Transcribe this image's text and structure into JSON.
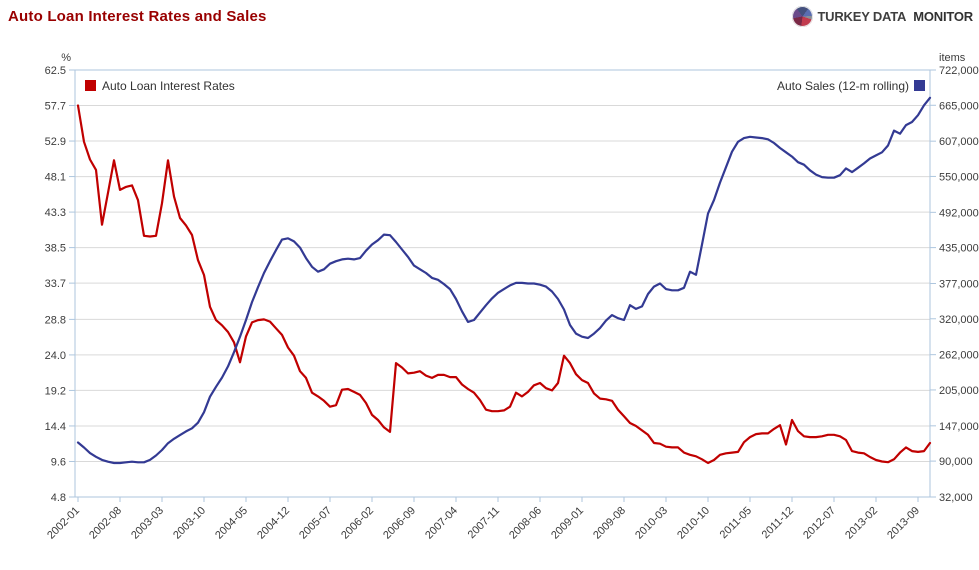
{
  "header": {
    "title": "Auto Loan Interest Rates and Sales",
    "brand": {
      "part1": "TURKEY DATA",
      "part2": "MONITOR"
    }
  },
  "chart_data": {
    "type": "line",
    "title": "Auto Loan Interest Rates and Sales",
    "grid": true,
    "left_axis": {
      "unit": "%",
      "min": 4.8,
      "max": 62.5,
      "ticks": [
        "62.5",
        "57.7",
        "52.9",
        "48.1",
        "43.3",
        "38.5",
        "33.7",
        "28.8",
        "24.0",
        "19.2",
        "14.4",
        "9.6",
        "4.8"
      ]
    },
    "right_axis": {
      "unit": "items",
      "min": 32000,
      "max": 722000,
      "ticks": [
        "722,000",
        "665,000",
        "607,000",
        "550,000",
        "492,000",
        "435,000",
        "377,000",
        "320,000",
        "262,000",
        "205,000",
        "147,000",
        "90,000",
        "32,000"
      ]
    },
    "x": {
      "start": "2002-01",
      "frequency": "monthly",
      "tick_labels": [
        "2002-01",
        "2002-08",
        "2003-03",
        "2003-10",
        "2004-05",
        "2004-12",
        "2005-07",
        "2006-02",
        "2006-09",
        "2007-04",
        "2007-11",
        "2008-06",
        "2009-01",
        "2009-08",
        "2010-03",
        "2010-10",
        "2011-05",
        "2011-12",
        "2012-07",
        "2013-02",
        "2013-09"
      ],
      "tick_month_indices": [
        0,
        7,
        14,
        21,
        28,
        35,
        42,
        49,
        56,
        63,
        70,
        77,
        84,
        91,
        98,
        105,
        112,
        119,
        126,
        133,
        140
      ]
    },
    "legend": {
      "position": "top-inside",
      "left_label": "Auto Loan Interest Rates",
      "right_label": "Auto Sales (12-m rolling)"
    },
    "colors": {
      "rates": "#c00000",
      "sales": "#333a93",
      "grid": "#d9d9d9",
      "frame": "#aec6de",
      "tick_text": "#3c3c3c"
    },
    "series": [
      {
        "name": "Auto Loan Interest Rates",
        "axis": "left",
        "color": "#c00000",
        "values": [
          57.7,
          52.8,
          50.4,
          49.0,
          41.6,
          45.9,
          50.3,
          46.3,
          46.7,
          46.9,
          44.9,
          40.1,
          40.0,
          40.1,
          44.5,
          50.3,
          45.4,
          42.5,
          41.5,
          40.2,
          36.8,
          34.8,
          30.5,
          28.7,
          28.0,
          27.1,
          25.7,
          23.0,
          26.5,
          28.4,
          28.7,
          28.8,
          28.5,
          27.6,
          26.7,
          25.0,
          23.9,
          21.8,
          20.9,
          18.9,
          18.4,
          17.8,
          17.0,
          17.2,
          19.3,
          19.4,
          19.0,
          18.6,
          17.5,
          15.9,
          15.2,
          14.2,
          13.6,
          22.9,
          22.3,
          21.5,
          21.6,
          21.8,
          21.2,
          20.9,
          21.3,
          21.3,
          21.0,
          21.0,
          20.0,
          19.4,
          18.9,
          17.9,
          16.6,
          16.4,
          16.4,
          16.5,
          17.0,
          18.9,
          18.4,
          19.0,
          19.9,
          20.2,
          19.5,
          19.2,
          20.2,
          23.9,
          22.9,
          21.4,
          20.6,
          20.2,
          18.8,
          18.1,
          18.0,
          17.8,
          16.6,
          15.7,
          14.8,
          14.4,
          13.8,
          13.2,
          12.1,
          12.0,
          11.6,
          11.5,
          11.5,
          10.8,
          10.5,
          10.3,
          9.9,
          9.4,
          9.8,
          10.5,
          10.7,
          10.8,
          10.9,
          12.2,
          12.9,
          13.3,
          13.4,
          13.4,
          14.0,
          14.5,
          11.9,
          15.2,
          13.7,
          13.0,
          12.9,
          12.9,
          13.0,
          13.2,
          13.2,
          13.0,
          12.5,
          11.0,
          10.8,
          10.7,
          10.2,
          9.8,
          9.6,
          9.5,
          9.9,
          10.8,
          11.5,
          11.0,
          10.9,
          11.0,
          12.1
        ]
      },
      {
        "name": "Auto Sales (12-m rolling)",
        "axis": "right",
        "color": "#333a93",
        "values": [
          120000,
          112000,
          103000,
          97000,
          92000,
          89000,
          87000,
          87000,
          88000,
          89000,
          88000,
          88000,
          92000,
          99000,
          108000,
          119000,
          126000,
          132000,
          138000,
          143000,
          152000,
          169000,
          194000,
          210000,
          225000,
          243000,
          266000,
          291000,
          318000,
          347000,
          371000,
          394000,
          413000,
          431000,
          448000,
          450000,
          445000,
          435000,
          418000,
          404000,
          396000,
          400000,
          409000,
          413000,
          416000,
          417000,
          416000,
          418000,
          430000,
          440000,
          447000,
          456000,
          455000,
          444000,
          432000,
          420000,
          406000,
          400000,
          394000,
          386000,
          383000,
          376000,
          368000,
          352000,
          332000,
          315000,
          318000,
          330000,
          342000,
          353000,
          362000,
          368000,
          374000,
          378000,
          378000,
          377000,
          377000,
          375000,
          372000,
          364000,
          352000,
          335000,
          310000,
          296000,
          291000,
          289000,
          296000,
          305000,
          317000,
          326000,
          321000,
          318000,
          342000,
          336000,
          340000,
          360000,
          372000,
          377000,
          368000,
          366000,
          366000,
          370000,
          396000,
          391000,
          440000,
          490000,
          512000,
          540000,
          565000,
          590000,
          606000,
          612000,
          614000,
          613000,
          612000,
          610000,
          604000,
          596000,
          589000,
          582000,
          573000,
          569000,
          560000,
          553000,
          549000,
          548000,
          548000,
          552000,
          563000,
          557000,
          564000,
          571000,
          579000,
          584000,
          589000,
          600000,
          624000,
          619000,
          633000,
          638000,
          649000,
          665000,
          677000
        ]
      }
    ]
  }
}
